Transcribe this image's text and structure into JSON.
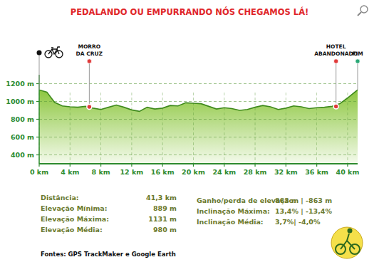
{
  "chart_data": {
    "type": "area",
    "title": "PEDALANDO OU EMPURRANDO NÓS CHEGAMOS LÁ!",
    "x": [
      0,
      1,
      2,
      3,
      4,
      5,
      6,
      7,
      8,
      9,
      10,
      11,
      12,
      13,
      14,
      15,
      16,
      17,
      18,
      19,
      20,
      21,
      22,
      23,
      24,
      25,
      26,
      27,
      28,
      29,
      30,
      31,
      32,
      33,
      34,
      35,
      36,
      37,
      38,
      39,
      40,
      41.3
    ],
    "values": [
      1130,
      1105,
      990,
      950,
      940,
      935,
      945,
      925,
      910,
      935,
      960,
      935,
      905,
      889,
      935,
      915,
      925,
      955,
      950,
      985,
      980,
      975,
      945,
      915,
      930,
      920,
      900,
      910,
      935,
      955,
      940,
      910,
      925,
      950,
      940,
      920,
      930,
      935,
      945,
      975,
      1040,
      1131
    ],
    "color": "#8cc63e",
    "xlim": [
      0,
      41.3
    ],
    "ylim": [
      300,
      1300
    ],
    "xticks": [
      {
        "value": 0,
        "label": "0 km"
      },
      {
        "value": 4,
        "label": "4 km"
      },
      {
        "value": 8,
        "label": "8 km"
      },
      {
        "value": 12,
        "label": "12 km"
      },
      {
        "value": 16,
        "label": "16 km"
      },
      {
        "value": 20,
        "label": "20 km"
      },
      {
        "value": 24,
        "label": "24 km"
      },
      {
        "value": 28,
        "label": "28 km"
      },
      {
        "value": 32,
        "label": "32 km"
      },
      {
        "value": 36,
        "label": "36 km"
      },
      {
        "value": 40,
        "label": "40 km"
      }
    ],
    "yticks": [
      {
        "value": 400,
        "label": "400 m"
      },
      {
        "value": 600,
        "label": "600 m"
      },
      {
        "value": 800,
        "label": "800 m"
      },
      {
        "value": 1000,
        "label": "1000 m"
      },
      {
        "value": 1200,
        "label": "1200 m"
      }
    ],
    "grid": true,
    "annotations": [
      {
        "label": [
          "MORRO",
          "DA CRUZ"
        ],
        "x": 6.5,
        "y": 940,
        "color": "#e03a3a"
      },
      {
        "label": [
          "HOTEL",
          "ABANDONADO"
        ],
        "x": 38.5,
        "y": 945,
        "color": "#e03a3a"
      },
      {
        "label": [
          "FIM"
        ],
        "x": 41.3,
        "y": 1131,
        "color": "#2aa876"
      }
    ],
    "stats": [
      {
        "label": "Distância:",
        "value": "41,3 km"
      },
      {
        "label": "Elevação Mínima:",
        "value": "889 m"
      },
      {
        "label": "Elevação Máxima:",
        "value": "1131 m"
      },
      {
        "label": "Elevação Média:",
        "value": "980 m"
      },
      {
        "label": "Ganho/perda de elevação:",
        "value": "863 m | -863 m"
      },
      {
        "label": "Inclinação Máxima:",
        "value": "13,4% | -13,4%"
      },
      {
        "label": "Inclinação Média:",
        "value": "3,7%| -4,0%"
      }
    ],
    "source": "Fontes: GPS TrackMaker e  Google Earth"
  }
}
